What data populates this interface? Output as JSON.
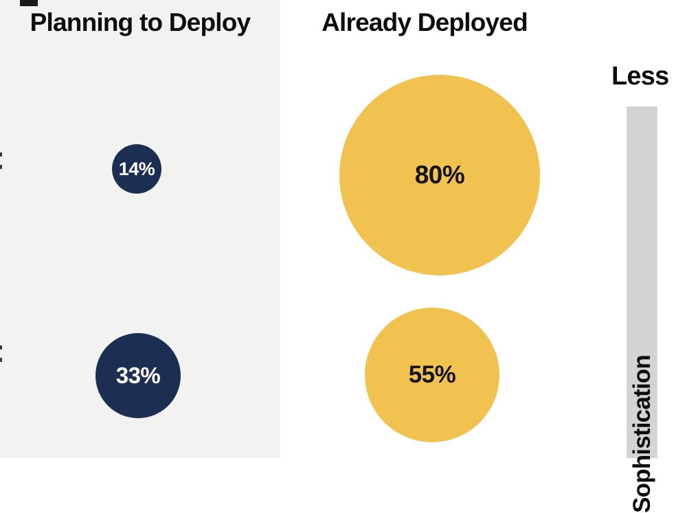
{
  "headers": {
    "planning": "Planning to Deploy",
    "deployed": "Already Deployed"
  },
  "axis": {
    "less": "Less",
    "sophistication": "Sophistication"
  },
  "bubbles": {
    "planning_row1": "14%",
    "planning_row2": "33%",
    "deployed_row1": "80%",
    "deployed_row2": "55%"
  },
  "colors": {
    "panel_bg": "#f2f2f1",
    "navy": "#1c2f53",
    "yellow": "#f1c24f",
    "bar_gray": "#d4d4d3",
    "ink": "#0d0d0d",
    "bubble_text_on_navy": "#ffffff",
    "bubble_text_on_yellow": "#131313"
  },
  "chart_data": {
    "type": "bubble",
    "title": "",
    "columns": [
      "Planning to Deploy",
      "Already Deployed"
    ],
    "series": [
      {
        "name": "Planning to Deploy",
        "color": "#1c2f53",
        "values_pct": [
          14,
          33
        ]
      },
      {
        "name": "Already Deployed",
        "color": "#f1c24f",
        "values_pct": [
          80,
          55
        ]
      }
    ],
    "rows": [
      {
        "planning_to_deploy_pct": 14,
        "already_deployed_pct": 80
      },
      {
        "planning_to_deploy_pct": 33,
        "already_deployed_pct": 55
      }
    ],
    "bubble_size_encodes": "percentage value",
    "right_axis": {
      "top_label": "Less",
      "bar_label_rotated": "Sophistication",
      "bar_style": "solid gray vertical bar, label rotated -90deg reading bottom-to-top, partially cropped at image bottom"
    },
    "layout_hints": {
      "left_column_background": "#f2f2f1",
      "right_column_background": "#ffffff",
      "row_labels": "cropped off left edge of screenshot"
    }
  }
}
